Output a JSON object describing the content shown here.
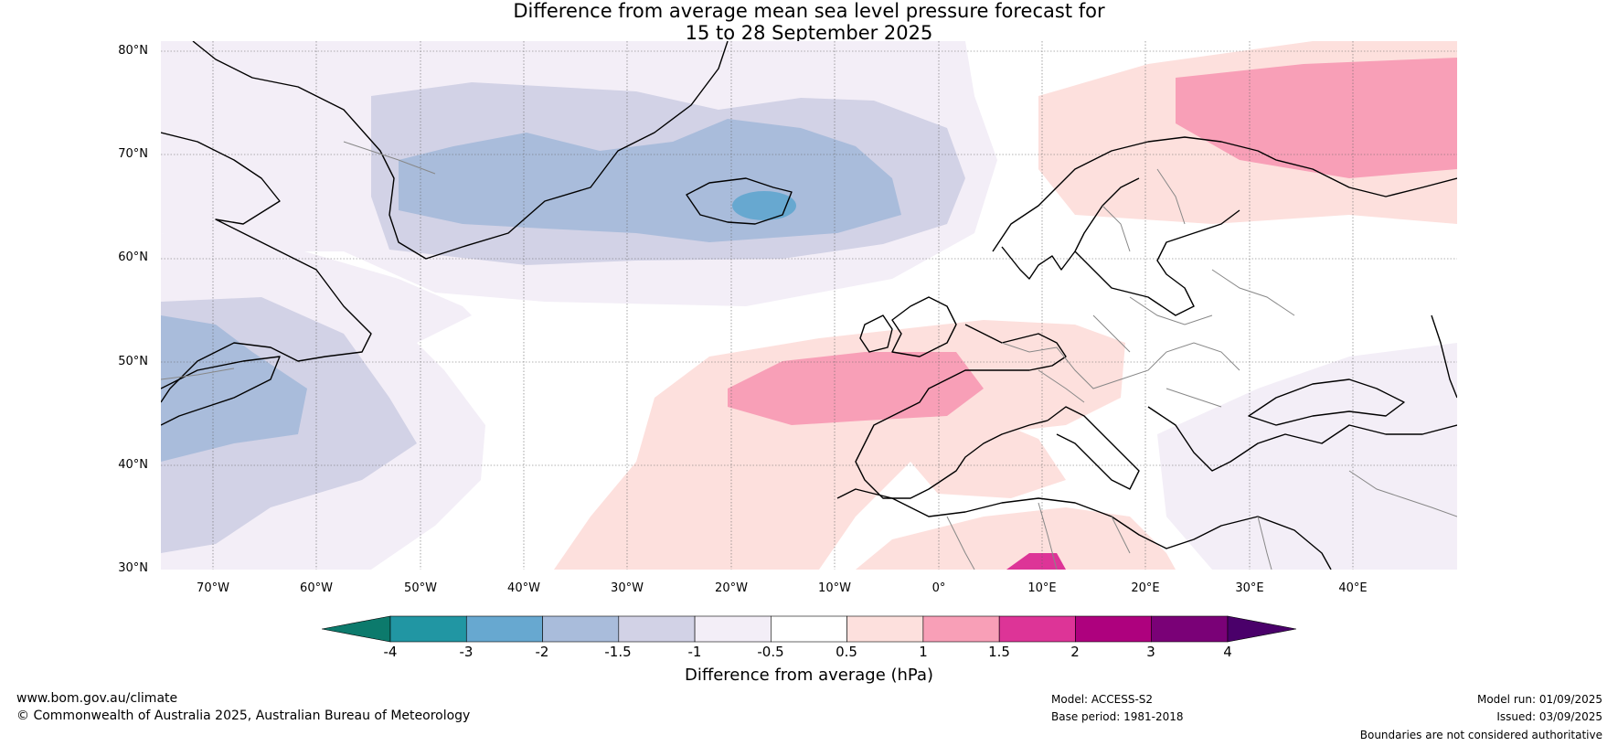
{
  "title": {
    "line1": "Difference from average mean sea level pressure forecast for",
    "line2": "15 to 28 September 2025"
  },
  "map": {
    "projection": "equirectangular",
    "lon_range": [
      -75,
      50
    ],
    "lat_range": [
      30,
      81
    ],
    "lat_labels": [
      "80°N",
      "70°N",
      "60°N",
      "50°N",
      "40°N",
      "30°N"
    ],
    "lon_labels": [
      "70°W",
      "60°W",
      "50°W",
      "40°W",
      "30°W",
      "20°W",
      "10°W",
      "0°",
      "10°E",
      "20°E",
      "30°E",
      "40°E"
    ],
    "gridlines": true,
    "anomaly_regions": [
      {
        "name": "negative anomaly over North Atlantic (-1 to -0.5 hPa)",
        "color": "#f3eef7"
      },
      {
        "name": "negative anomaly Greenland–Iceland (-1.5 to -1 hPa)",
        "color": "#d2d2e6"
      },
      {
        "name": "negative anomaly core (-2 to -1.5 hPa)",
        "color": "#a9bcdb"
      },
      {
        "name": "small negative core near Iceland (-3 to -2 hPa)",
        "color": "#67a8d0"
      },
      {
        "name": "positive anomaly west Europe and Scandinavia (0.5 to 1 hPa)",
        "color": "#fde0dd"
      },
      {
        "name": "positive core west of France and Barents Sea (1 to 1.5 hPa)",
        "color": "#f89fb7"
      },
      {
        "name": "positive core near North Africa (1.5 to 2 hPa)",
        "color": "#dd3497"
      }
    ]
  },
  "colorbar": {
    "labels": [
      "-4",
      "-3",
      "-2",
      "-1.5",
      "-1",
      "-0.5",
      "0.5",
      "1",
      "1.5",
      "2",
      "3",
      "4"
    ],
    "colors": [
      "#0c7a6c",
      "#2196a3",
      "#67a8d0",
      "#a9bcdb",
      "#d2d2e6",
      "#f3eef7",
      "#ffffff",
      "#fde0dd",
      "#f89fb7",
      "#dd3497",
      "#ae017e",
      "#7a0177",
      "#4a006a"
    ],
    "title": "Difference from average (hPa)"
  },
  "footer": {
    "url": "www.bom.gov.au/climate",
    "copyright": "© Commonwealth of Australia 2025, Australian Bureau of Meteorology",
    "model": "Model: ACCESS-S2",
    "base_period": "Base period: 1981-2018",
    "model_run": "Model run: 01/09/2025",
    "issued": "Issued: 03/09/2025",
    "disclaimer": "Boundaries are not considered authoritative"
  }
}
